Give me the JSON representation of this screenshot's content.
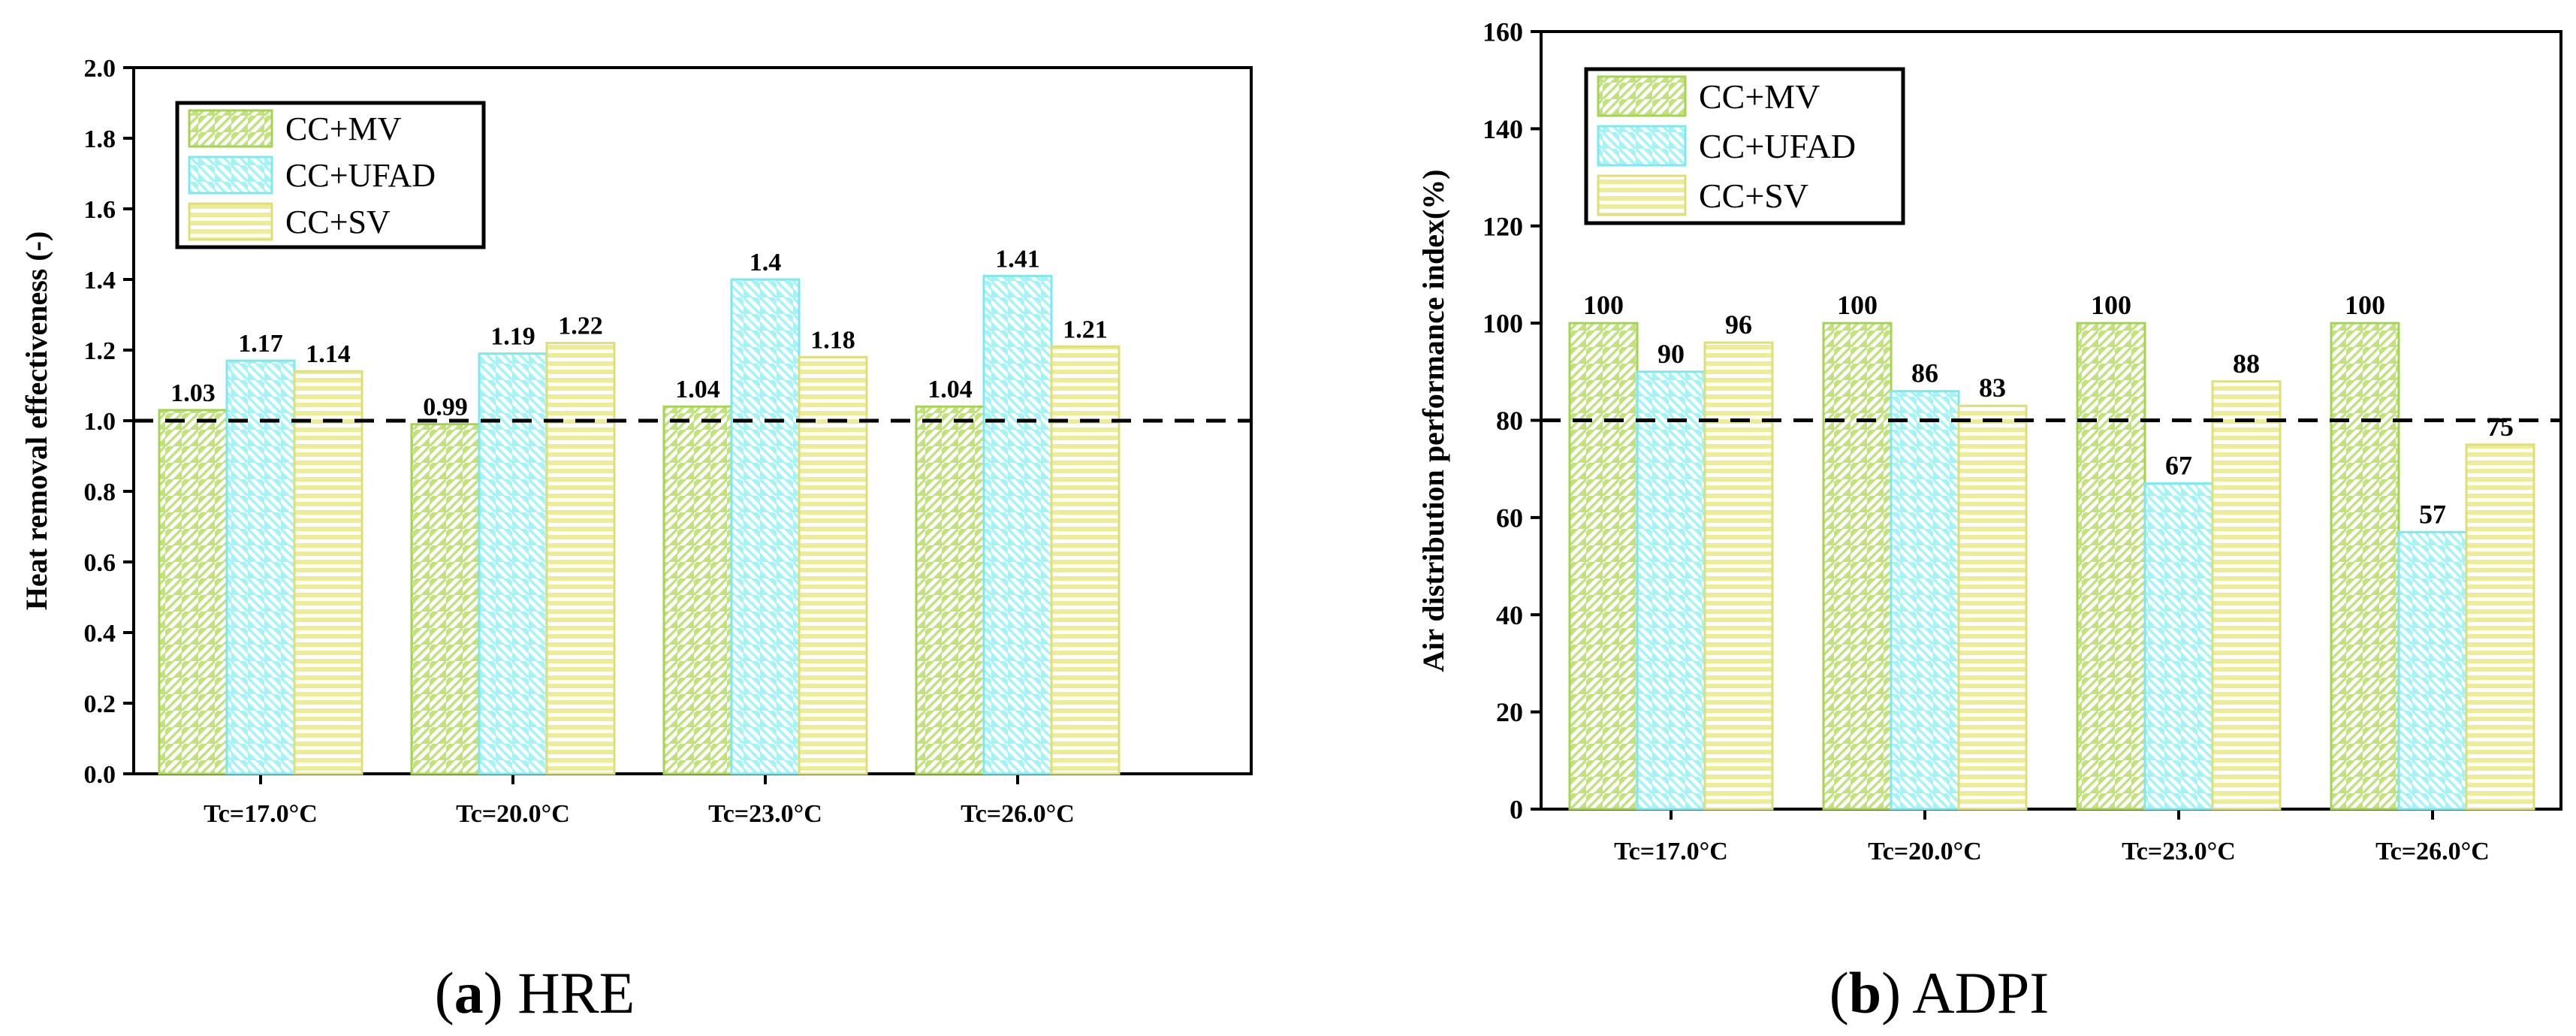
{
  "series_styles": {
    "CC+MV": {
      "fill": "#c2e27a",
      "edge": "#a5d450",
      "hatch": "diag-left"
    },
    "CC+UFAD": {
      "fill": "#a6f3f7",
      "edge": "#7de9ef",
      "hatch": "diag-right"
    },
    "CC+SV": {
      "fill": "#eded98",
      "edge": "#dfdf7a",
      "hatch": "horizontal"
    }
  },
  "chart_data": [
    {
      "type": "bar",
      "caption_letter": "a",
      "caption_text": "HRE",
      "ylabel": "Heat removal effectiveness (-)",
      "xlabel": "",
      "ylim": [
        0,
        2.0
      ],
      "ytick_values": [
        0,
        0.2,
        0.4,
        0.6,
        0.8,
        1.0,
        1.2,
        1.4,
        1.6,
        1.8,
        2.0
      ],
      "ytick_labels": [
        "0.0",
        "0.2",
        "0.4",
        "0.6",
        "0.8",
        "1.0",
        "1.2",
        "1.4",
        "1.6",
        "1.8",
        "2.0"
      ],
      "categories": [
        "Tc=17.0°C",
        "Tc=20.0°C",
        "Tc=23.0°C",
        "Tc=26.0°C"
      ],
      "reference_line": 1.0,
      "legend_position": "top-left",
      "series": [
        {
          "name": "CC+MV",
          "values": [
            1.03,
            0.99,
            1.04,
            1.04
          ],
          "labels": [
            "1.03",
            "0.99",
            "1.04",
            "1.04"
          ]
        },
        {
          "name": "CC+UFAD",
          "values": [
            1.17,
            1.19,
            1.4,
            1.41
          ],
          "labels": [
            "1.17",
            "1.19",
            "1.4",
            "1.41"
          ]
        },
        {
          "name": "CC+SV",
          "values": [
            1.14,
            1.22,
            1.18,
            1.21
          ],
          "labels": [
            "1.14",
            "1.22",
            "1.18",
            "1.21"
          ]
        }
      ]
    },
    {
      "type": "bar",
      "caption_letter": "b",
      "caption_text": "ADPI",
      "ylabel": "Air distribution performance index(%)",
      "xlabel": "",
      "ylim": [
        0,
        160
      ],
      "ytick_values": [
        0,
        20,
        40,
        60,
        80,
        100,
        120,
        140,
        160
      ],
      "ytick_labels": [
        "0",
        "20",
        "40",
        "60",
        "80",
        "100",
        "120",
        "140",
        "160"
      ],
      "categories": [
        "Tc=17.0°C",
        "Tc=20.0°C",
        "Tc=23.0°C",
        "Tc=26.0°C"
      ],
      "reference_line": 80,
      "legend_position": "top-left",
      "series": [
        {
          "name": "CC+MV",
          "values": [
            100,
            100,
            100,
            100
          ],
          "labels": [
            "100",
            "100",
            "100",
            "100"
          ]
        },
        {
          "name": "CC+UFAD",
          "values": [
            90,
            86,
            67,
            57
          ],
          "labels": [
            "90",
            "86",
            "67",
            "57"
          ]
        },
        {
          "name": "CC+SV",
          "values": [
            96,
            83,
            88,
            75
          ],
          "labels": [
            "96",
            "83",
            "88",
            "75"
          ]
        }
      ]
    }
  ]
}
